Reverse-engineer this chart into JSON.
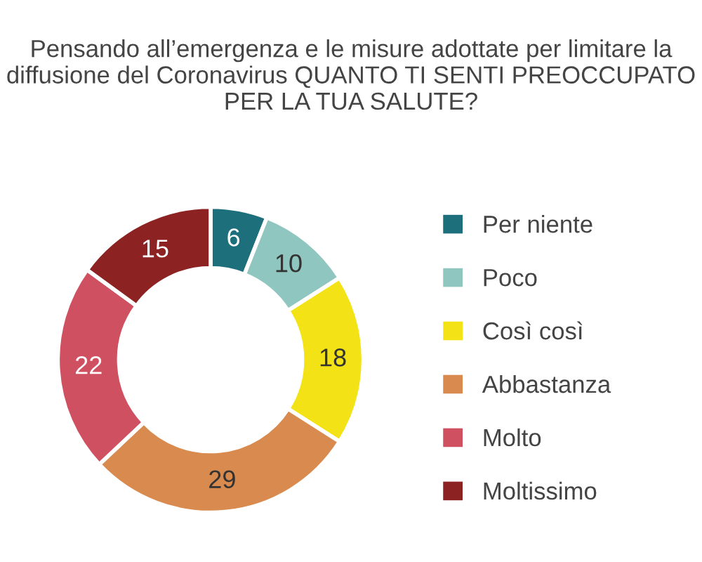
{
  "chart_data": {
    "type": "donut",
    "title": "Pensando all’emergenza e le misure adottate per limitare la diffusione del Coronavirus QUANTO TI SENTI PREOCCUPATO PER LA TUA SALUTE?",
    "categories": [
      "Per niente",
      "Poco",
      "Così così",
      "Abbastanza",
      "Molto",
      "Moltissimo"
    ],
    "values": [
      6,
      10,
      18,
      29,
      22,
      15
    ],
    "colors": [
      "#1d6f7c",
      "#8fc6c0",
      "#f3e316",
      "#d98a4f",
      "#cf5060",
      "#8c2322"
    ],
    "data_labels": true,
    "legend": "right"
  }
}
